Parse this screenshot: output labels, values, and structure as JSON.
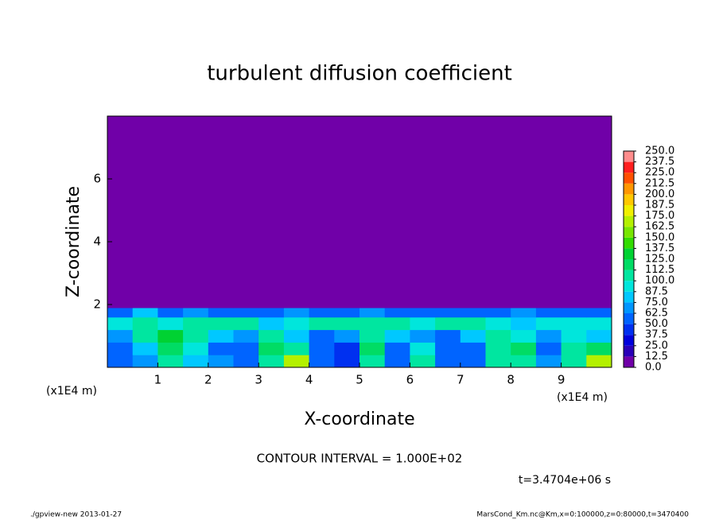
{
  "chart_data": {
    "type": "heatmap",
    "title": "turbulent diffusion coefficient",
    "x_label": "X-coordinate",
    "y_label": "Z-coordinate",
    "x_unit_labels": [
      "(x1E4 m)",
      "(x1E4 m)"
    ],
    "xlim": [
      0,
      10
    ],
    "xticks": [
      1,
      2,
      3,
      4,
      5,
      6,
      7,
      8,
      9
    ],
    "ylim": [
      0,
      8
    ],
    "yticks": [
      2,
      4,
      6
    ],
    "x_edges": [
      0,
      0.5,
      1,
      1.5,
      2,
      2.5,
      3,
      3.5,
      4,
      4.5,
      5,
      5.5,
      6,
      6.5,
      7,
      7.5,
      8,
      8.5,
      9,
      9.5,
      10
    ],
    "z_edges": [
      0,
      0.4,
      0.8,
      1.2,
      1.6,
      1.9,
      8
    ],
    "values": [
      [
        60,
        70,
        110,
        80,
        70,
        60,
        110,
        170,
        60,
        40,
        110,
        60,
        100,
        50,
        60,
        110,
        100,
        70,
        110,
        170
      ],
      [
        50,
        80,
        120,
        90,
        60,
        50,
        120,
        110,
        60,
        40,
        120,
        60,
        90,
        50,
        60,
        100,
        120,
        60,
        100,
        120
      ],
      [
        70,
        100,
        130,
        100,
        80,
        70,
        100,
        80,
        60,
        70,
        110,
        80,
        70,
        60,
        80,
        110,
        90,
        70,
        90,
        80
      ],
      [
        90,
        110,
        90,
        110,
        100,
        110,
        80,
        90,
        100,
        100,
        110,
        100,
        90,
        100,
        100,
        90,
        80,
        90,
        90,
        90
      ],
      [
        60,
        80,
        50,
        70,
        60,
        60,
        60,
        70,
        60,
        60,
        70,
        60,
        60,
        60,
        60,
        60,
        70,
        60,
        60,
        60
      ],
      [
        0,
        0,
        0,
        0,
        0,
        0,
        0,
        0,
        0,
        0,
        0,
        0,
        0,
        0,
        0,
        0,
        0,
        0,
        0,
        0
      ]
    ],
    "colorbar": {
      "ticks": [
        {
          "value": 0,
          "label": "0.0"
        },
        {
          "value": 12.5,
          "label": "12.5"
        },
        {
          "value": 25,
          "label": "25.0"
        },
        {
          "value": 37.5,
          "label": "37.5"
        },
        {
          "value": 50,
          "label": "50.0"
        },
        {
          "value": 62.5,
          "label": "62.5"
        },
        {
          "value": 75,
          "label": "75.0"
        },
        {
          "value": 87.5,
          "label": "87.5"
        },
        {
          "value": 100,
          "label": "100.0"
        },
        {
          "value": 112.5,
          "label": "112.5"
        },
        {
          "value": 125,
          "label": "125.0"
        },
        {
          "value": 137.5,
          "label": "137.5"
        },
        {
          "value": 150,
          "label": "150.0"
        },
        {
          "value": 162.5,
          "label": "162.5"
        },
        {
          "value": 175,
          "label": "175.0"
        },
        {
          "value": 187.5,
          "label": "187.5"
        },
        {
          "value": 200,
          "label": "200.0"
        },
        {
          "value": 212.5,
          "label": "212.5"
        },
        {
          "value": 225,
          "label": "225.0"
        },
        {
          "value": 237.5,
          "label": "237.5"
        },
        {
          "value": 250,
          "label": "250.0"
        }
      ],
      "colors": [
        "#7000a8",
        "#2a00b8",
        "#0000dc",
        "#0030f0",
        "#0064ff",
        "#0096ff",
        "#00c8ff",
        "#00e6dc",
        "#00e6a0",
        "#00dc64",
        "#00d232",
        "#32dc00",
        "#78e600",
        "#b4f000",
        "#f0f000",
        "#ffc800",
        "#ff9600",
        "#ff5000",
        "#ff1e1e",
        "#ff8c8c"
      ]
    },
    "contour_interval": "CONTOUR INTERVAL = 1.000E+02",
    "time_label": "t=3.4704e+06 s",
    "footer_left": "./gpview-new  2013-01-27",
    "footer_right": "MarsCond_Km.nc@Km,x=0:100000,z=0:80000,t=3470400"
  }
}
